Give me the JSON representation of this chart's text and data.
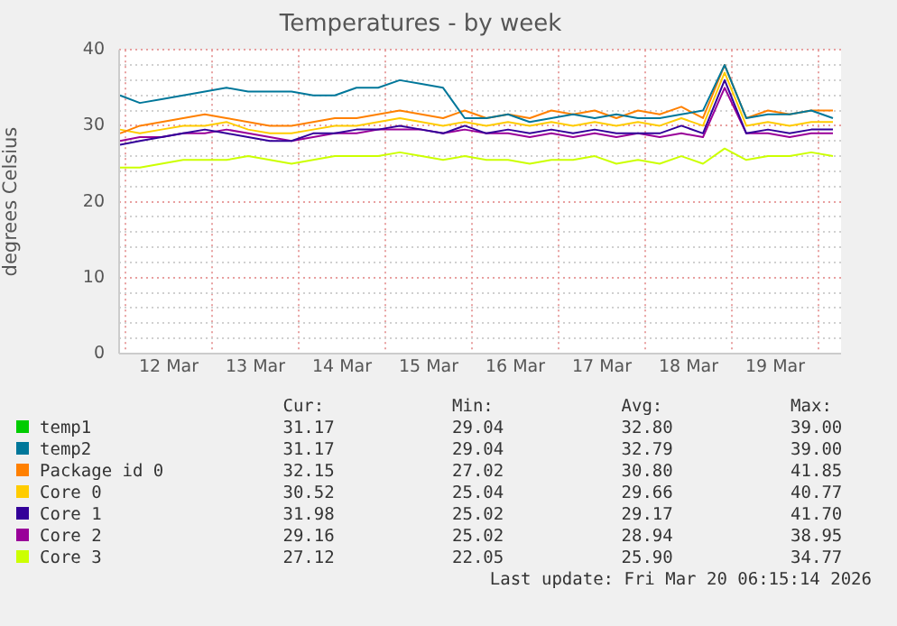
{
  "chart_data": {
    "type": "line",
    "title": "Temperatures - by week",
    "ylabel": "degrees Celsius",
    "x": [
      "2026-03-11T22:30",
      "2026-03-12T04:00",
      "2026-03-12T10:00",
      "2026-03-12T16:00",
      "2026-03-12T22:00",
      "2026-03-13T04:00",
      "2026-03-13T10:00",
      "2026-03-13T16:00",
      "2026-03-13T22:00",
      "2026-03-14T04:00",
      "2026-03-14T10:00",
      "2026-03-14T16:00",
      "2026-03-14T22:00",
      "2026-03-15T04:00",
      "2026-03-15T10:00",
      "2026-03-15T16:00",
      "2026-03-15T22:00",
      "2026-03-16T04:00",
      "2026-03-16T10:00",
      "2026-03-16T16:00",
      "2026-03-16T22:00",
      "2026-03-17T04:00",
      "2026-03-17T10:00",
      "2026-03-17T16:00",
      "2026-03-17T22:00",
      "2026-03-18T04:00",
      "2026-03-18T10:00",
      "2026-03-18T16:00",
      "2026-03-18T22:00",
      "2026-03-19T04:00",
      "2026-03-19T10:00",
      "2026-03-19T16:00",
      "2026-03-19T22:00",
      "2026-03-20T04:00"
    ],
    "xlim": [
      "2026-03-11T22:15",
      "2026-03-20T06:15"
    ],
    "xticks": [
      {
        "value": "2026-03-12T00:00",
        "label": null
      },
      {
        "value": "2026-03-12T12:00",
        "label": "12 Mar"
      },
      {
        "value": "2026-03-13T00:00",
        "label": null
      },
      {
        "value": "2026-03-13T12:00",
        "label": "13 Mar"
      },
      {
        "value": "2026-03-14T00:00",
        "label": null
      },
      {
        "value": "2026-03-14T12:00",
        "label": "14 Mar"
      },
      {
        "value": "2026-03-15T00:00",
        "label": null
      },
      {
        "value": "2026-03-15T12:00",
        "label": "15 Mar"
      },
      {
        "value": "2026-03-16T00:00",
        "label": null
      },
      {
        "value": "2026-03-16T12:00",
        "label": "16 Mar"
      },
      {
        "value": "2026-03-17T00:00",
        "label": null
      },
      {
        "value": "2026-03-17T12:00",
        "label": "17 Mar"
      },
      {
        "value": "2026-03-18T00:00",
        "label": null
      },
      {
        "value": "2026-03-18T12:00",
        "label": "18 Mar"
      },
      {
        "value": "2026-03-19T00:00",
        "label": null
      },
      {
        "value": "2026-03-19T12:00",
        "label": "19 Mar"
      },
      {
        "value": "2026-03-20T00:00",
        "label": null
      }
    ],
    "ylim": [
      0,
      40
    ],
    "yticks": [
      0,
      {
        "value": 2,
        "label": null
      },
      {
        "value": 4,
        "label": null
      },
      {
        "value": 6,
        "label": null
      },
      {
        "value": 8,
        "label": null
      },
      10,
      {
        "value": 12,
        "label": null
      },
      {
        "value": 14,
        "label": null
      },
      {
        "value": 16,
        "label": null
      },
      {
        "value": 18,
        "label": null
      },
      20,
      {
        "value": 22,
        "label": null
      },
      {
        "value": 24,
        "label": null
      },
      {
        "value": 26,
        "label": null
      },
      {
        "value": 28,
        "label": null
      },
      30,
      {
        "value": 32,
        "label": null
      },
      {
        "value": 34,
        "label": null
      },
      {
        "value": 36,
        "label": null
      },
      {
        "value": 38,
        "label": null
      },
      40
    ],
    "grid": true,
    "legend": "bottom",
    "marker": "none",
    "line_style": "solid",
    "series": [
      {
        "name": "temp1",
        "color": "#00cc00",
        "values": [
          null,
          null,
          null,
          null,
          null,
          null,
          null,
          null,
          null,
          null,
          null,
          null,
          null,
          null,
          null,
          null,
          null,
          null,
          null,
          null,
          null,
          null,
          null,
          null,
          null,
          null,
          null,
          null,
          null,
          null,
          null,
          null,
          null,
          null
        ]
      },
      {
        "name": "temp2",
        "color": "#00779a",
        "values": [
          34,
          33,
          33.5,
          34,
          34.5,
          35,
          34.5,
          34.5,
          34.5,
          34,
          34,
          35,
          35,
          36,
          35.5,
          35,
          31,
          31,
          31.5,
          30.5,
          31,
          31.5,
          31,
          31.5,
          31,
          31,
          31.5,
          32,
          38,
          31,
          31.5,
          31.5,
          32,
          31
        ]
      },
      {
        "name": "Package id 0",
        "color": "#ff8000",
        "values": [
          29,
          30,
          30.5,
          31,
          31.5,
          31,
          30.5,
          30,
          30,
          30.5,
          31,
          31,
          31.5,
          32,
          31.5,
          31,
          32,
          31,
          31.5,
          31,
          32,
          31.5,
          32,
          31,
          32,
          31.5,
          32.5,
          31,
          38,
          31,
          32,
          31.5,
          32,
          32
        ]
      },
      {
        "name": "Core 0",
        "color": "#ffcc00",
        "values": [
          29.5,
          29,
          29.5,
          30,
          30,
          30.5,
          29.5,
          29,
          29,
          29.5,
          30,
          30,
          30.5,
          31,
          30.5,
          30,
          30.5,
          30,
          30.5,
          30,
          30.5,
          30,
          30.5,
          30,
          30.5,
          30,
          31,
          30,
          37,
          30,
          30.5,
          30,
          30.5,
          30.5
        ]
      },
      {
        "name": "Core 1",
        "color": "#330099",
        "values": [
          27.5,
          28,
          28.5,
          29,
          29.5,
          29,
          28.5,
          28,
          28,
          29,
          29,
          29.5,
          29.5,
          30,
          29.5,
          29,
          30,
          29,
          29.5,
          29,
          29.5,
          29,
          29.5,
          29,
          29,
          29,
          30,
          29,
          36,
          29,
          29.5,
          29,
          29.5,
          29.5
        ]
      },
      {
        "name": "Core 2",
        "color": "#990099",
        "values": [
          28,
          28.5,
          28.5,
          29,
          29,
          29.5,
          29,
          28.5,
          28,
          28.5,
          29,
          29,
          29.5,
          29.5,
          29.5,
          29,
          29.5,
          29,
          29,
          28.5,
          29,
          28.5,
          29,
          28.5,
          29,
          28.5,
          29,
          28.5,
          35,
          29,
          29,
          28.5,
          29,
          29
        ]
      },
      {
        "name": "Core 3",
        "color": "#ccff00",
        "values": [
          24.5,
          24.5,
          25,
          25.5,
          25.5,
          25.5,
          26,
          25.5,
          25,
          25.5,
          26,
          26,
          26,
          26.5,
          26,
          25.5,
          26,
          25.5,
          25.5,
          25,
          25.5,
          25.5,
          26,
          25,
          25.5,
          25,
          26,
          25,
          27,
          25.5,
          26,
          26,
          26.5,
          26
        ]
      }
    ],
    "annotations": [
      "Cur:",
      "Min:",
      "Avg:",
      "Max:",
      "31.17",
      "29.04",
      "32.80",
      "39.00",
      "31.17",
      "29.04",
      "32.79",
      "39.00",
      "32.15",
      "27.02",
      "30.80",
      "41.85",
      "30.52",
      "25.04",
      "29.66",
      "40.77",
      "31.98",
      "25.02",
      "29.17",
      "41.70",
      "29.16",
      "25.02",
      "28.94",
      "38.95",
      "27.12",
      "22.05",
      "25.90",
      "34.77",
      "Last update: Fri Mar 20 06:15:14 2026"
    ]
  }
}
